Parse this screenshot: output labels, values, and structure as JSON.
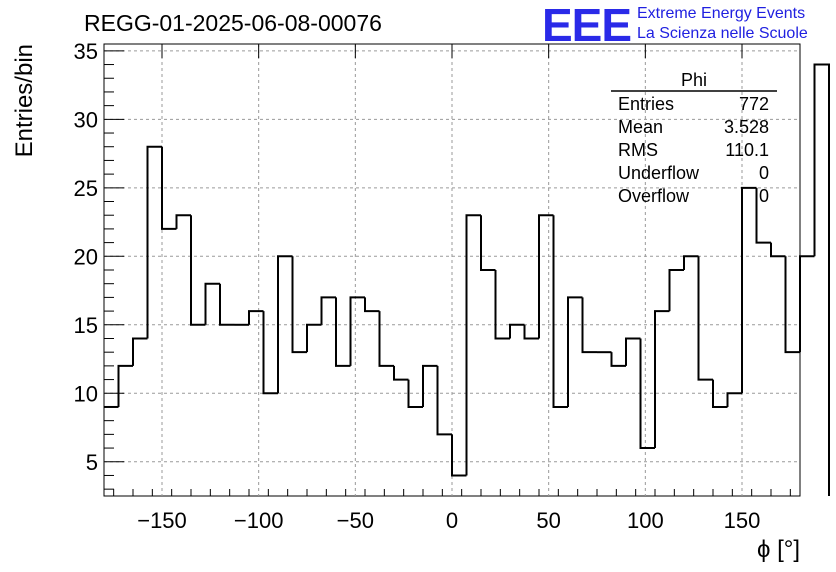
{
  "header": {
    "run_title": "REGG-01-2025-06-08-00076",
    "logo_text": "EEE",
    "logo_line1": "Extreme Energy Events",
    "logo_line2": "La Scienza nelle Scuole",
    "logo_color": "#2a2ae8"
  },
  "stats": {
    "name": "Phi",
    "rows": [
      {
        "label": "Entries",
        "value": "772"
      },
      {
        "label": "Mean",
        "value": "3.528"
      },
      {
        "label": "RMS",
        "value": "110.1"
      },
      {
        "label": "Underflow",
        "value": "0"
      },
      {
        "label": "Overflow",
        "value": "0"
      }
    ]
  },
  "chart_data": {
    "type": "bar",
    "histogram_style": "step",
    "title": "REGG-01-2025-06-08-00076",
    "xlabel": "ϕ [°]",
    "ylabel": "Entries/bin",
    "xlim": [
      -180,
      180
    ],
    "ylim": [
      2.5,
      35.5
    ],
    "bin_width": 7.5,
    "x_ticks": [
      -150,
      -100,
      -50,
      0,
      50,
      100,
      150
    ],
    "x_tick_labels": [
      "−150",
      "−100",
      "−50",
      "0",
      "50",
      "100",
      "150"
    ],
    "y_ticks": [
      5,
      10,
      15,
      20,
      25,
      30,
      35
    ],
    "grid": true,
    "bin_edges_start": -180,
    "values": [
      9,
      12,
      14,
      28,
      22,
      23,
      15,
      18,
      15,
      15,
      16,
      10,
      20,
      13,
      15,
      17,
      12,
      17,
      16,
      12,
      11,
      9,
      12,
      7,
      4,
      23,
      19,
      14,
      15,
      14,
      23,
      9,
      17,
      13,
      13,
      12,
      14,
      6,
      16,
      19,
      20,
      11,
      9,
      10,
      25,
      21,
      20,
      13,
      20,
      34
    ],
    "line_color": "#000000",
    "grid_color": "#9a9a9a"
  }
}
